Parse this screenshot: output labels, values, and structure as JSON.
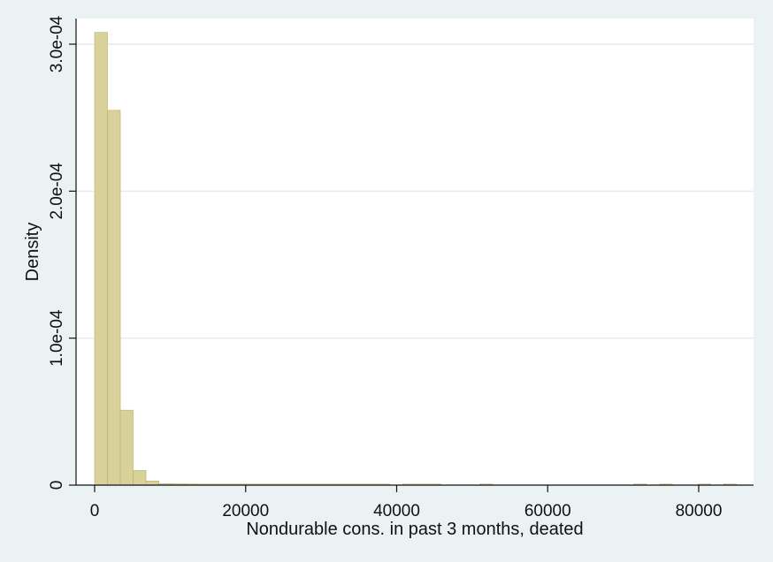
{
  "chart_data": {
    "type": "bar",
    "title": "",
    "xlabel": "Nondurable cons. in past 3 months, deated",
    "ylabel": "Density",
    "bin_width": 1700,
    "x_start": 0,
    "values": [
      0.000308,
      0.000255,
      5.1e-05,
      1e-05,
      2.8e-06,
      1e-06,
      9e-07,
      8e-07,
      7e-07,
      7e-07,
      6e-07,
      6e-07,
      5e-07,
      5e-07,
      5e-07,
      5e-07,
      5e-07,
      5e-07,
      5e-07,
      4e-07,
      4e-07,
      4e-07,
      4e-07,
      0,
      6e-07,
      6e-07,
      6e-07,
      0,
      0,
      0,
      4e-07,
      0,
      0,
      0,
      0,
      0,
      0,
      0,
      0,
      0,
      0,
      0,
      4e-07,
      0,
      4e-07,
      0,
      0,
      4e-07,
      0,
      4e-07
    ],
    "xlim": [
      0,
      87000
    ],
    "ylim": [
      0,
      0.00032
    ],
    "x_ticks": [
      0,
      20000,
      40000,
      60000,
      80000
    ],
    "x_tick_labels": [
      "0",
      "20000",
      "40000",
      "60000",
      "80000"
    ],
    "y_ticks": [
      0,
      0.0001,
      0.0002,
      0.0003
    ],
    "y_tick_labels": [
      "0",
      "1.0e-04",
      "2.0e-04",
      "3.0e-04"
    ],
    "grid": true,
    "colors": {
      "bar_fill": "#d9d19a",
      "bar_stroke": "#bdb06a",
      "plot_bg": "#ffffff",
      "outer_bg": "#eaf2f3",
      "grid": "#e4ecee"
    }
  }
}
